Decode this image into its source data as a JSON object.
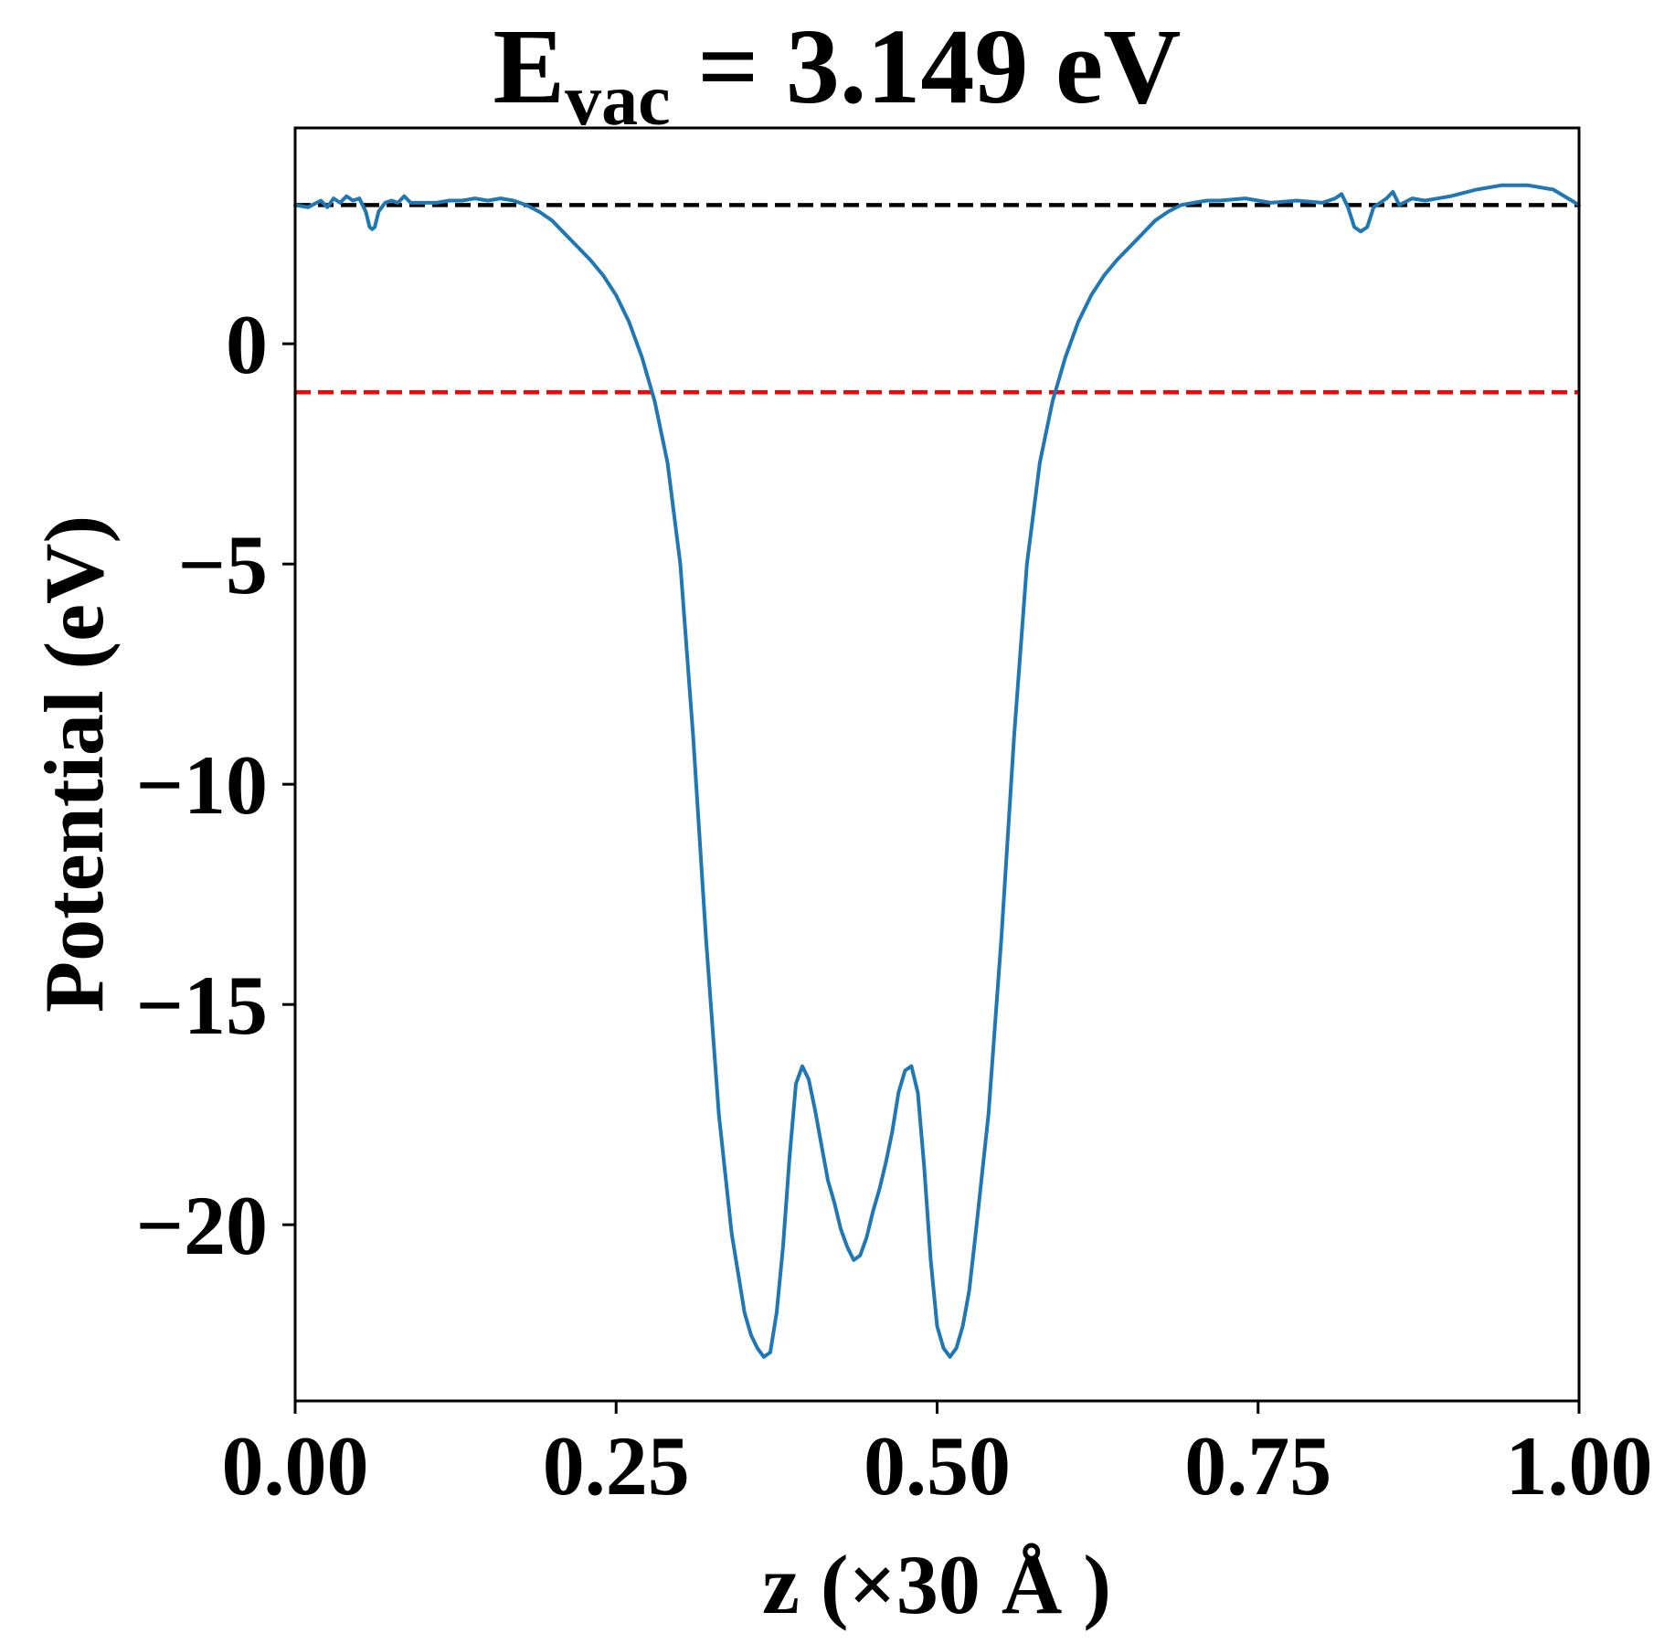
{
  "chart_data": {
    "type": "line",
    "title_main": "E",
    "title_sub": "vac",
    "title_rest": " = 3.149 eV",
    "xlabel": "z (×30 Å )",
    "ylabel": "Potential (eV)",
    "xlim": [
      0.0,
      1.0
    ],
    "ylim": [
      -24.0,
      4.9
    ],
    "xticks": [
      0.0,
      0.25,
      0.5,
      0.75,
      1.0
    ],
    "xtick_labels": [
      "0.00",
      "0.25",
      "0.50",
      "0.75",
      "1.00"
    ],
    "yticks": [
      0,
      -5,
      -10,
      -15,
      -20
    ],
    "ytick_labels": [
      "0",
      "−5",
      "−10",
      "−15",
      "−20"
    ],
    "grid": false,
    "reference_lines": [
      {
        "y": 3.149,
        "color": "#000000",
        "style": "dashed"
      },
      {
        "y": -1.1,
        "color": "#ff0000",
        "style": "dashed"
      }
    ],
    "series": [
      {
        "color": "#1f77b4",
        "x": [
          0.0,
          0.01,
          0.02,
          0.025,
          0.03,
          0.035,
          0.04,
          0.045,
          0.05,
          0.055,
          0.058,
          0.06,
          0.062,
          0.065,
          0.07,
          0.075,
          0.08,
          0.085,
          0.09,
          0.1,
          0.11,
          0.12,
          0.13,
          0.14,
          0.15,
          0.16,
          0.17,
          0.18,
          0.19,
          0.2,
          0.21,
          0.22,
          0.23,
          0.24,
          0.25,
          0.26,
          0.27,
          0.28,
          0.29,
          0.3,
          0.31,
          0.32,
          0.33,
          0.34,
          0.35,
          0.355,
          0.36,
          0.365,
          0.37,
          0.375,
          0.38,
          0.385,
          0.39,
          0.395,
          0.4,
          0.405,
          0.41,
          0.415,
          0.42,
          0.425,
          0.43,
          0.435,
          0.44,
          0.445,
          0.45,
          0.455,
          0.46,
          0.465,
          0.47,
          0.475,
          0.48,
          0.485,
          0.49,
          0.495,
          0.5,
          0.505,
          0.51,
          0.515,
          0.52,
          0.525,
          0.53,
          0.54,
          0.55,
          0.56,
          0.57,
          0.58,
          0.59,
          0.6,
          0.61,
          0.62,
          0.63,
          0.64,
          0.65,
          0.66,
          0.67,
          0.68,
          0.69,
          0.7,
          0.71,
          0.72,
          0.74,
          0.76,
          0.78,
          0.8,
          0.81,
          0.815,
          0.82,
          0.825,
          0.83,
          0.835,
          0.84,
          0.85,
          0.855,
          0.86,
          0.87,
          0.88,
          0.9,
          0.92,
          0.94,
          0.96,
          0.98,
          1.0
        ],
        "y": [
          3.15,
          3.1,
          3.25,
          3.1,
          3.3,
          3.2,
          3.35,
          3.25,
          3.3,
          3.0,
          2.65,
          2.6,
          2.65,
          3.0,
          3.2,
          3.25,
          3.2,
          3.35,
          3.2,
          3.2,
          3.2,
          3.25,
          3.25,
          3.3,
          3.25,
          3.3,
          3.25,
          3.15,
          3.0,
          2.8,
          2.5,
          2.2,
          1.9,
          1.55,
          1.1,
          0.5,
          -0.3,
          -1.3,
          -2.7,
          -5.0,
          -8.9,
          -13.5,
          -17.5,
          -20.2,
          -22.0,
          -22.5,
          -22.8,
          -23.0,
          -22.9,
          -22.0,
          -20.5,
          -18.5,
          -16.8,
          -16.4,
          -16.7,
          -17.4,
          -18.2,
          -19.0,
          -19.5,
          -20.1,
          -20.5,
          -20.8,
          -20.7,
          -20.3,
          -19.7,
          -19.2,
          -18.6,
          -17.9,
          -17.0,
          -16.5,
          -16.4,
          -17.0,
          -18.7,
          -20.8,
          -22.3,
          -22.8,
          -23.0,
          -22.8,
          -22.3,
          -21.5,
          -20.2,
          -17.5,
          -13.5,
          -8.9,
          -5.0,
          -2.7,
          -1.3,
          -0.3,
          0.5,
          1.1,
          1.55,
          1.9,
          2.2,
          2.5,
          2.8,
          3.0,
          3.15,
          3.2,
          3.25,
          3.25,
          3.3,
          3.2,
          3.25,
          3.2,
          3.3,
          3.4,
          3.1,
          2.65,
          2.55,
          2.65,
          3.1,
          3.3,
          3.45,
          3.15,
          3.3,
          3.25,
          3.35,
          3.5,
          3.6,
          3.6,
          3.5,
          3.15
        ]
      }
    ]
  }
}
